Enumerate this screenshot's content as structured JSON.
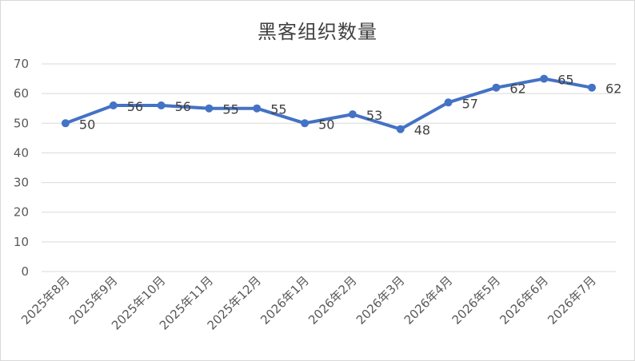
{
  "chart_data": {
    "type": "line",
    "title": "黑客组织数量",
    "categories": [
      "2025年8月",
      "2025年9月",
      "2025年10月",
      "2025年11月",
      "2025年12月",
      "2026年1月",
      "2026年2月",
      "2026年3月",
      "2026年4月",
      "2026年5月",
      "2026年6月",
      "2026年7月"
    ],
    "series": [
      {
        "values": [
          50,
          56,
          56,
          55,
          55,
          50,
          53,
          48,
          57,
          62,
          65,
          62
        ]
      }
    ],
    "ylim": [
      0,
      70
    ],
    "yticks": [
      0,
      10,
      20,
      30,
      40,
      50,
      60,
      70
    ],
    "grid": true,
    "data_labels": true,
    "legend": "none",
    "color": "#4472c4"
  }
}
